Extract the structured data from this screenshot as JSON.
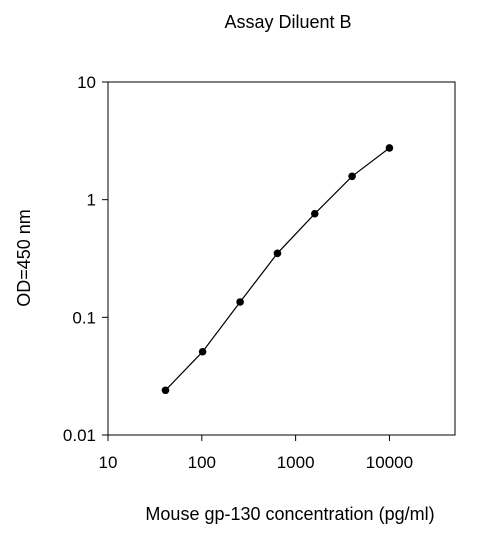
{
  "chart_data": {
    "type": "line",
    "title": "Assay Diluent B",
    "xlabel": "Mouse gp-130 concentration (pg/ml)",
    "ylabel": "OD=450 nm",
    "xscale": "log",
    "yscale": "log",
    "xlim": [
      10,
      50000
    ],
    "ylim": [
      0.01,
      10
    ],
    "xticks": [
      10,
      100,
      1000,
      10000
    ],
    "xtick_labels": [
      "10",
      "100",
      "1000",
      "10000"
    ],
    "yticks": [
      0.01,
      0.1,
      1,
      10
    ],
    "ytick_labels": [
      "0.01",
      "0.1",
      "1",
      "10"
    ],
    "grid": false,
    "legend": "none",
    "series": [
      {
        "color": "#000000",
        "marker": "circle",
        "points": [
          {
            "x": 41,
            "y": 0.024
          },
          {
            "x": 102,
            "y": 0.051
          },
          {
            "x": 256,
            "y": 0.135
          },
          {
            "x": 640,
            "y": 0.35
          },
          {
            "x": 1600,
            "y": 0.76
          },
          {
            "x": 4000,
            "y": 1.58
          },
          {
            "x": 10000,
            "y": 2.75
          }
        ]
      }
    ]
  }
}
